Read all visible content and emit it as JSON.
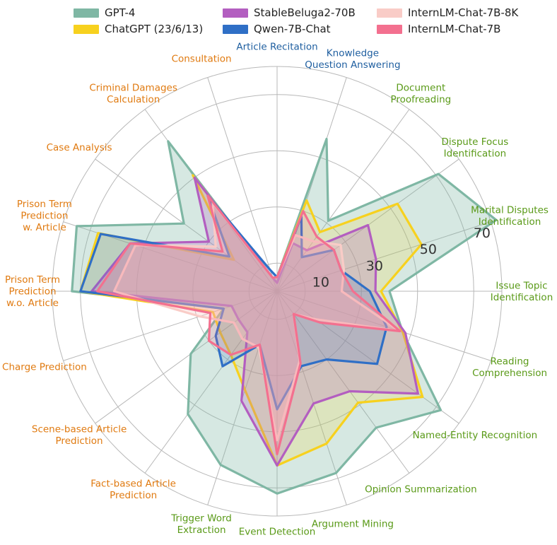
{
  "chart_data": {
    "type": "radar",
    "r_max": 80,
    "r_ticks": [
      10,
      30,
      50,
      70
    ],
    "grid": true,
    "legend_position": "top",
    "category_colors": {
      "memorization": "#1f5fa0",
      "understanding": "#5a9a18",
      "application": "#e07a10"
    },
    "categories": [
      {
        "label": "Article Recitation",
        "group": "memorization"
      },
      {
        "label": "Knowledge\nQuestion Answering",
        "group": "memorization"
      },
      {
        "label": "Document\nProofreading",
        "group": "understanding"
      },
      {
        "label": "Dispute Focus\nIdentification",
        "group": "understanding"
      },
      {
        "label": "Marital Disputes\nIdentification",
        "group": "understanding"
      },
      {
        "label": "Issue Topic\nIdentification",
        "group": "understanding"
      },
      {
        "label": "Reading\nComprehension",
        "group": "understanding"
      },
      {
        "label": "Named-Entity Recognition",
        "group": "understanding"
      },
      {
        "label": "Opinion Summarization",
        "group": "understanding"
      },
      {
        "label": "Argument Mining",
        "group": "understanding"
      },
      {
        "label": "Event Detection",
        "group": "understanding"
      },
      {
        "label": "Trigger Word\nExtraction",
        "group": "understanding"
      },
      {
        "label": "Fact-based Article\nPrediction",
        "group": "application"
      },
      {
        "label": "Scene-based Article\nPrediction",
        "group": "application"
      },
      {
        "label": "Charge Prediction",
        "group": "application"
      },
      {
        "label": "Prison Term\nPrediction\nw.o. Article",
        "group": "application"
      },
      {
        "label": "Prison Term\nPrediction\nw. Article",
        "group": "application"
      },
      {
        "label": "Case Analysis",
        "group": "application"
      },
      {
        "label": "Criminal Damages\nCalculation",
        "group": "application"
      },
      {
        "label": "Consultation",
        "group": "application"
      }
    ],
    "series": [
      {
        "name": "GPT-4",
        "color": "#7fb7a4",
        "fill_opacity": 0.32,
        "values": [
          5,
          57,
          31,
          71,
          82,
          40,
          47,
          72,
          60,
          68,
          72,
          65,
          54,
          38,
          20,
          73,
          75,
          41,
          66,
          5
        ]
      },
      {
        "name": "ChatGPT (23/6/13)",
        "color": "#f7d11e",
        "fill_opacity": 0.18,
        "values": [
          5,
          34,
          26,
          53,
          54,
          37,
          47,
          64,
          49,
          57,
          62,
          37,
          28,
          25,
          24,
          70,
          67,
          19,
          51,
          5
        ]
      },
      {
        "name": "StableBeluga2-70B",
        "color": "#b35ec0",
        "fill_opacity": 0.25,
        "values": [
          3,
          18,
          18,
          40,
          37,
          35,
          48,
          62,
          44,
          42,
          62,
          41,
          18,
          17,
          17,
          66,
          55,
          30,
          50,
          5
        ]
      },
      {
        "name": "Qwen-7B-Chat",
        "color": "#2f6fc6",
        "fill_opacity": 0.18,
        "values": [
          5,
          28,
          15,
          25,
          24,
          33,
          41,
          44,
          30,
          28,
          42,
          20,
          33,
          27,
          20,
          70,
          66,
          21,
          42,
          8
        ]
      },
      {
        "name": "InternLM-Chat-7B-8K",
        "color": "#f9ccc7",
        "fill_opacity": 0.35,
        "values": [
          5,
          21,
          22,
          28,
          25,
          23,
          46,
          17,
          10,
          26,
          53,
          21,
          21,
          19,
          29,
          58,
          53,
          27,
          39,
          5
        ]
      },
      {
        "name": "InternLM-Chat-7B",
        "color": "#f3708f",
        "fill_opacity": 0.2,
        "values": [
          5,
          30,
          24,
          25,
          24,
          27,
          46,
          19,
          10,
          27,
          58,
          20,
          28,
          30,
          25,
          64,
          55,
          24,
          42,
          5
        ]
      }
    ]
  }
}
